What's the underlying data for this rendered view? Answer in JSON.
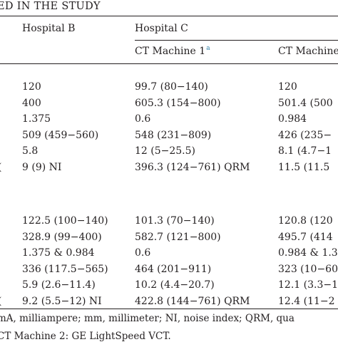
{
  "table": {
    "title": "ED IN THE STUDY",
    "headers": {
      "hospital_b": "Hospital B",
      "hospital_c": "Hospital C",
      "ct_machine_1": "CT Machine 1",
      "ct_machine_1_sup": "a",
      "ct_machine_2": "CT Machine"
    },
    "edge_marks": [
      "(",
      "("
    ],
    "group1": [
      [
        "120",
        "99.7 (80−140)",
        "120"
      ],
      [
        "400",
        "605.3 (154−800)",
        "501.4 (500"
      ],
      [
        "1.375",
        "0.6",
        "0.984"
      ],
      [
        "509 (459−560)",
        "548 (231−809)",
        "426 (235−"
      ],
      [
        "5.8",
        "12 (5−25.5)",
        "8.1 (4.7−1"
      ],
      [
        "9 (9) NI",
        "396.3 (124−761) QRM",
        "11.5 (11.5"
      ]
    ],
    "group2": [
      [
        "122.5 (100−140)",
        "101.3 (70−140)",
        "120.8 (120"
      ],
      [
        "328.9 (99−400)",
        "582.7 (121−800)",
        "495.7 (414"
      ],
      [
        "1.375 & 0.984",
        "0.6",
        "0.984 & 1.3"
      ],
      [
        "336 (117.5−565)",
        "464 (201−911)",
        "323 (10−60"
      ],
      [
        "5.9 (2.6−11.4)",
        "10.2 (4.4−20.7)",
        "12.1 (3.3−1"
      ],
      [
        "9.2 (5.5−12) NI",
        "422.8 (144−761) QRM",
        "12.4 (11−2"
      ]
    ],
    "footnote_1": "mA, milliampere; mm, millimeter; NI, noise index; QRM, qua",
    "footnote_2": "CT Machine 2: GE LightSpeed VCT."
  }
}
